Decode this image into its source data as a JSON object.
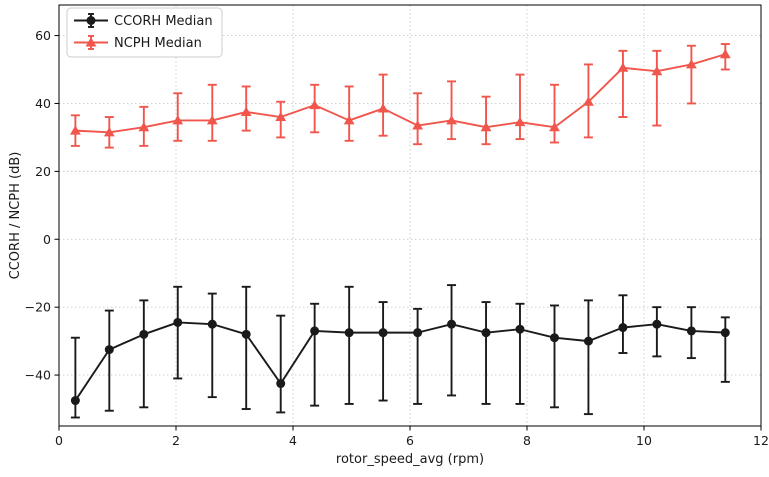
{
  "figure": {
    "background": "#ffffff",
    "spine_color": "#000000",
    "grid_color": "#c9c9c9",
    "tick_label_color": "#1a1a1a"
  },
  "chart_data": {
    "type": "line",
    "title": "",
    "xlabel": "rotor_speed_avg (rpm)",
    "ylabel": "CCORH / NCPH (dB)",
    "xlim": [
      0,
      12
    ],
    "ylim": [
      -55,
      69
    ],
    "xticks": [
      0,
      2,
      4,
      6,
      8,
      10,
      12
    ],
    "yticks": [
      -40,
      -20,
      0,
      20,
      40,
      60
    ],
    "grid": true,
    "grid_style": "dotted",
    "legend_position": "upper-left",
    "x": [
      0.28,
      0.86,
      1.45,
      2.03,
      2.62,
      3.2,
      3.79,
      4.37,
      4.96,
      5.54,
      6.13,
      6.71,
      7.3,
      7.88,
      8.47,
      9.05,
      9.64,
      10.22,
      10.81,
      11.39
    ],
    "series": [
      {
        "name": "CCORH Median",
        "color": "#1a1a1a",
        "marker": "circle",
        "values": [
          -47.5,
          -32.5,
          -28,
          -24.5,
          -25,
          -28,
          -42.5,
          -27,
          -27.5,
          -27.5,
          -27.5,
          -25,
          -27.5,
          -26.5,
          -29,
          -30,
          -26,
          -25,
          -27,
          -27.5
        ],
        "err_up": [
          18.5,
          11.5,
          10,
          10.5,
          9,
          14,
          20,
          8,
          13.5,
          9,
          7,
          11.5,
          9,
          7.5,
          9.5,
          12,
          9.5,
          5,
          7,
          4.5
        ],
        "err_down": [
          5,
          18,
          21.5,
          16.5,
          21.5,
          22,
          8.5,
          22,
          21,
          20,
          21,
          21,
          21,
          22,
          20.5,
          21.5,
          7.5,
          9.5,
          8,
          14.5
        ]
      },
      {
        "name": "NCPH Median",
        "color": "#f0564c",
        "marker": "triangle-up",
        "values": [
          32,
          31.5,
          33,
          35,
          35,
          37.5,
          36,
          39.5,
          35,
          38.5,
          33.5,
          35,
          33,
          34.5,
          33,
          40.5,
          50.5,
          49.5,
          51.5,
          54.5
        ],
        "err_up": [
          4.5,
          4.5,
          6,
          8,
          10.5,
          7.5,
          4.5,
          6,
          10,
          10,
          9.5,
          11.5,
          9,
          14,
          12.5,
          11,
          5,
          6,
          5.5,
          3
        ],
        "err_down": [
          4.5,
          4.5,
          5.5,
          6,
          6,
          5.5,
          6,
          8,
          6,
          8,
          5.5,
          5.5,
          5,
          5,
          4.5,
          10.5,
          14.5,
          16,
          11.5,
          4.5
        ]
      }
    ]
  }
}
